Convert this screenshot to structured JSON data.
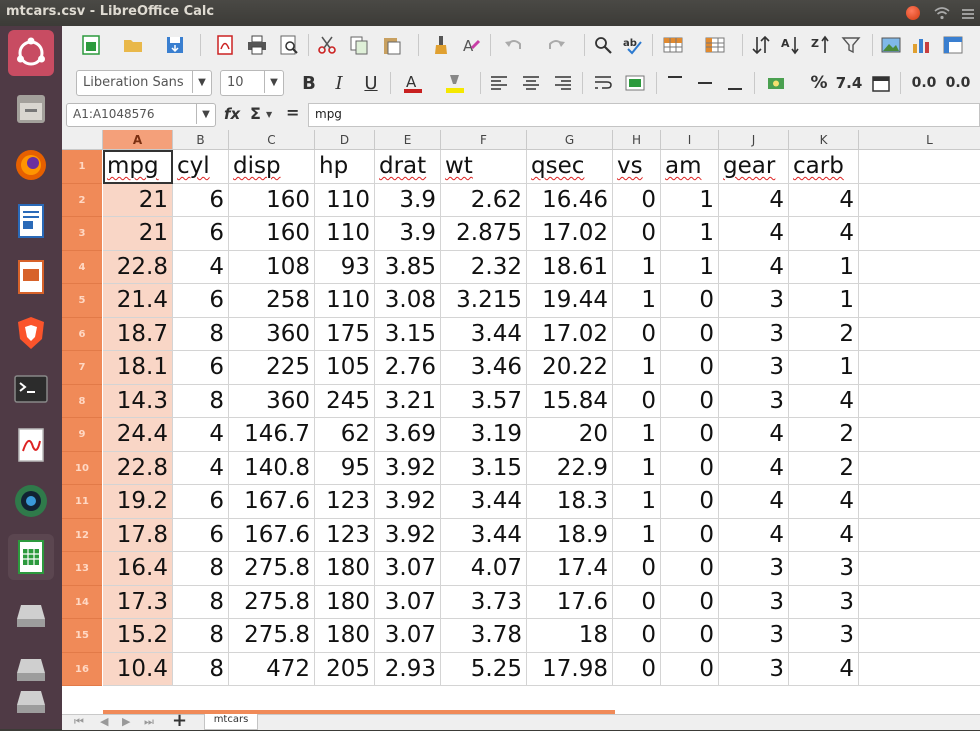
{
  "window": {
    "title": "mtcars.csv - LibreOffice Calc"
  },
  "launcher": {
    "items": [
      "ubuntu-dash",
      "files",
      "firefox",
      "writer",
      "impress",
      "brave",
      "terminal",
      "document-viewer",
      "camera",
      "calc",
      "drive-1",
      "drive-2",
      "drive-3"
    ]
  },
  "format_bar": {
    "font_name": "Liberation Sans",
    "font_size": "10",
    "bold": "B",
    "italic": "I",
    "underline": "U",
    "percent": "%",
    "number_format": "7.4",
    "add_decimal": "0.0",
    "del_decimal": "0.0"
  },
  "formula_bar": {
    "name_box": "A1:A1048576",
    "fx": "fx",
    "sigma": "Σ",
    "equals": "=",
    "content": "mpg"
  },
  "columns": [
    "A",
    "B",
    "C",
    "D",
    "E",
    "F",
    "G",
    "H",
    "I",
    "J",
    "K",
    "L"
  ],
  "rows": [
    {
      "num": "1",
      "cells": [
        "mpg",
        "cyl",
        "disp",
        "hp",
        "drat",
        "wt",
        "qsec",
        "vs",
        "am",
        "gear",
        "carb"
      ]
    },
    {
      "num": "2",
      "cells": [
        "21",
        "6",
        "160",
        "110",
        "3.9",
        "2.62",
        "16.46",
        "0",
        "1",
        "4",
        "4"
      ]
    },
    {
      "num": "3",
      "cells": [
        "21",
        "6",
        "160",
        "110",
        "3.9",
        "2.875",
        "17.02",
        "0",
        "1",
        "4",
        "4"
      ]
    },
    {
      "num": "4",
      "cells": [
        "22.8",
        "4",
        "108",
        "93",
        "3.85",
        "2.32",
        "18.61",
        "1",
        "1",
        "4",
        "1"
      ]
    },
    {
      "num": "5",
      "cells": [
        "21.4",
        "6",
        "258",
        "110",
        "3.08",
        "3.215",
        "19.44",
        "1",
        "0",
        "3",
        "1"
      ]
    },
    {
      "num": "6",
      "cells": [
        "18.7",
        "8",
        "360",
        "175",
        "3.15",
        "3.44",
        "17.02",
        "0",
        "0",
        "3",
        "2"
      ]
    },
    {
      "num": "7",
      "cells": [
        "18.1",
        "6",
        "225",
        "105",
        "2.76",
        "3.46",
        "20.22",
        "1",
        "0",
        "3",
        "1"
      ]
    },
    {
      "num": "8",
      "cells": [
        "14.3",
        "8",
        "360",
        "245",
        "3.21",
        "3.57",
        "15.84",
        "0",
        "0",
        "3",
        "4"
      ]
    },
    {
      "num": "9",
      "cells": [
        "24.4",
        "4",
        "146.7",
        "62",
        "3.69",
        "3.19",
        "20",
        "1",
        "0",
        "4",
        "2"
      ]
    },
    {
      "num": "10",
      "cells": [
        "22.8",
        "4",
        "140.8",
        "95",
        "3.92",
        "3.15",
        "22.9",
        "1",
        "0",
        "4",
        "2"
      ]
    },
    {
      "num": "11",
      "cells": [
        "19.2",
        "6",
        "167.6",
        "123",
        "3.92",
        "3.44",
        "18.3",
        "1",
        "0",
        "4",
        "4"
      ]
    },
    {
      "num": "12",
      "cells": [
        "17.8",
        "6",
        "167.6",
        "123",
        "3.92",
        "3.44",
        "18.9",
        "1",
        "0",
        "4",
        "4"
      ]
    },
    {
      "num": "13",
      "cells": [
        "16.4",
        "8",
        "275.8",
        "180",
        "3.07",
        "4.07",
        "17.4",
        "0",
        "0",
        "3",
        "3"
      ]
    },
    {
      "num": "14",
      "cells": [
        "17.3",
        "8",
        "275.8",
        "180",
        "3.07",
        "3.73",
        "17.6",
        "0",
        "0",
        "3",
        "3"
      ]
    },
    {
      "num": "15",
      "cells": [
        "15.2",
        "8",
        "275.8",
        "180",
        "3.07",
        "3.78",
        "18",
        "0",
        "0",
        "3",
        "3"
      ]
    },
    {
      "num": "16",
      "cells": [
        "10.4",
        "8",
        "472",
        "205",
        "2.93",
        "5.25",
        "17.98",
        "0",
        "0",
        "3",
        "4"
      ]
    }
  ],
  "sheet_tabs": {
    "add": "+",
    "active": "mtcars"
  },
  "colors": {
    "header_orange": "#f08a58",
    "selected_col": "#f9d6c6",
    "launcher_bg": "#4f3a45",
    "titlebar_bg": "#3c3b37"
  }
}
